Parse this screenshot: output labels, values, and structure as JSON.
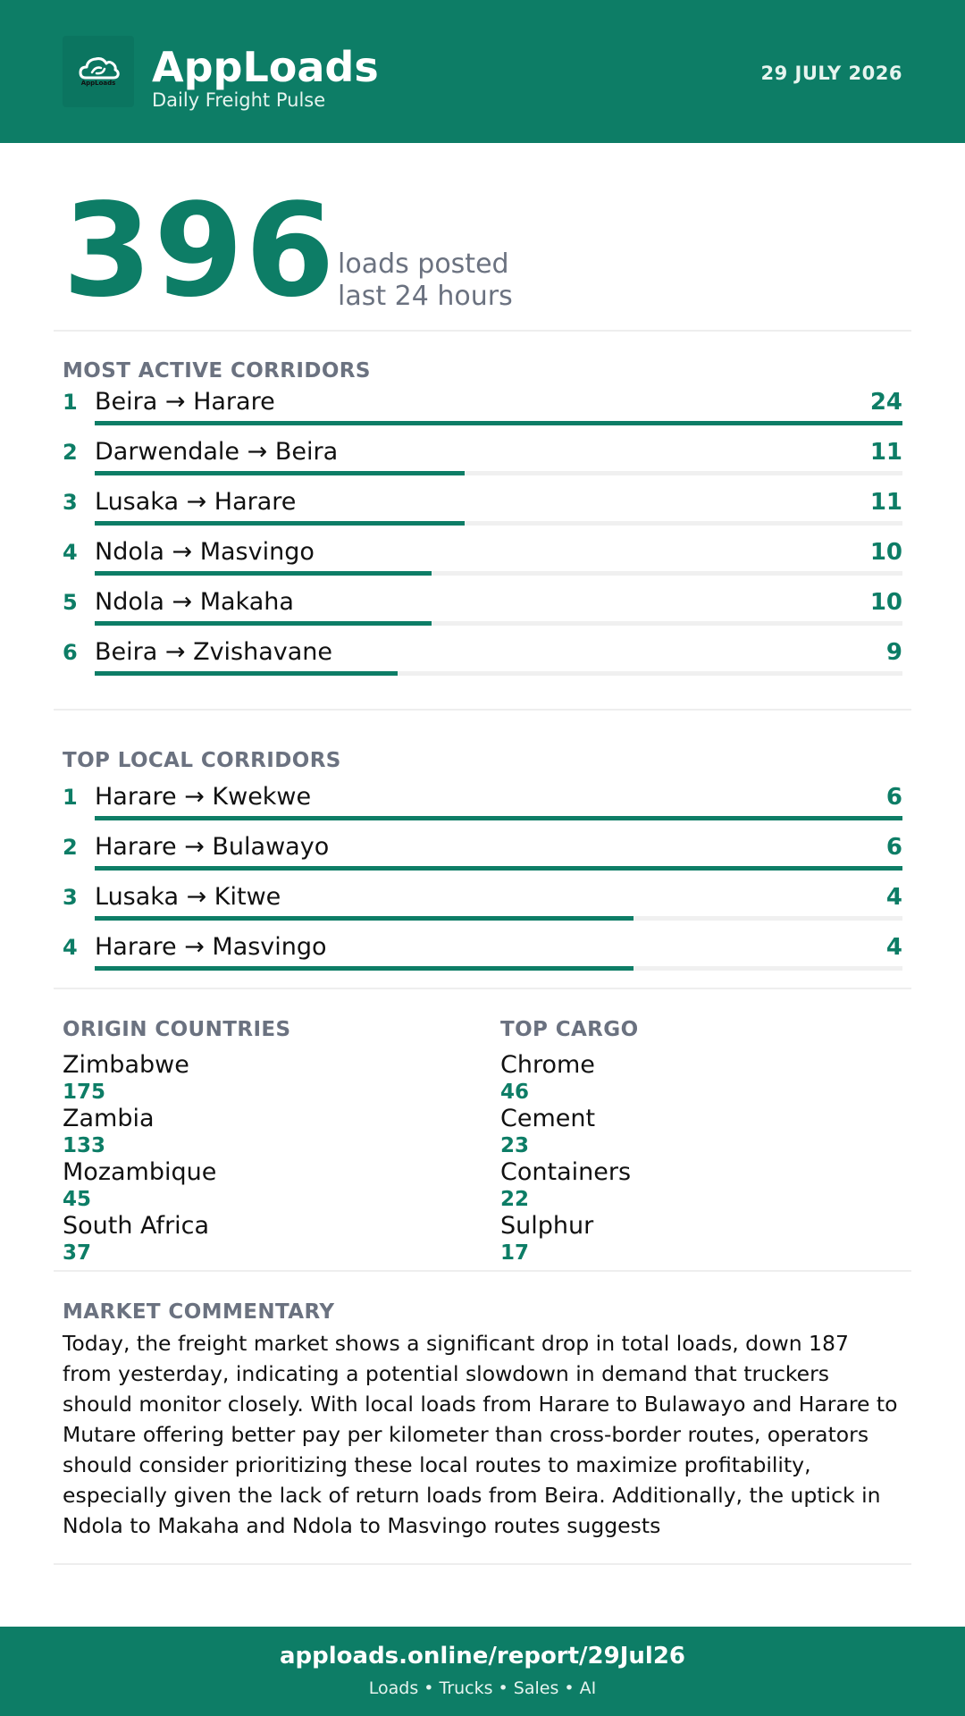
{
  "header": {
    "brand": "AppLoads",
    "tagline": "Daily Freight Pulse",
    "date": "29 JULY 2026",
    "logo_text": "AppLoads",
    "logo_icon": "cloud-icon"
  },
  "hero": {
    "count": "396",
    "label_line1": "loads posted",
    "label_line2": "last 24 hours"
  },
  "most_active": {
    "title": "MOST ACTIVE CORRIDORS",
    "max": 24,
    "items": [
      {
        "rank": "1",
        "route": "Beira → Harare",
        "count": 24
      },
      {
        "rank": "2",
        "route": "Darwendale → Beira",
        "count": 11
      },
      {
        "rank": "3",
        "route": "Lusaka → Harare",
        "count": 11
      },
      {
        "rank": "4",
        "route": "Ndola → Masvingo",
        "count": 10
      },
      {
        "rank": "5",
        "route": "Ndola → Makaha",
        "count": 10
      },
      {
        "rank": "6",
        "route": "Beira → Zvishavane",
        "count": 9
      }
    ]
  },
  "top_local": {
    "title": "TOP LOCAL CORRIDORS",
    "max": 6,
    "items": [
      {
        "rank": "1",
        "route": "Harare → Kwekwe",
        "count": 6
      },
      {
        "rank": "2",
        "route": "Harare → Bulawayo",
        "count": 6
      },
      {
        "rank": "3",
        "route": "Lusaka → Kitwe",
        "count": 4
      },
      {
        "rank": "4",
        "route": "Harare → Masvingo",
        "count": 4
      }
    ]
  },
  "origin_countries": {
    "title": "ORIGIN COUNTRIES",
    "items": [
      {
        "name": "Zimbabwe",
        "value": "175"
      },
      {
        "name": "Zambia",
        "value": "133"
      },
      {
        "name": "Mozambique",
        "value": "45"
      },
      {
        "name": "South Africa",
        "value": "37"
      }
    ]
  },
  "top_cargo": {
    "title": "TOP CARGO",
    "items": [
      {
        "name": "Chrome",
        "value": "46"
      },
      {
        "name": "Cement",
        "value": "23"
      },
      {
        "name": "Containers",
        "value": "22"
      },
      {
        "name": "Sulphur",
        "value": "17"
      }
    ]
  },
  "commentary": {
    "title": "MARKET COMMENTARY",
    "text": "Today, the freight market shows a significant drop in total loads, down 187 from yesterday, indicating a potential slowdown in demand that truckers should monitor closely. With local loads from Harare to Bulawayo and Harare to Mutare offering better pay per kilometer than cross-border routes, operators should consider prioritizing these local routes to maximize profitability, especially given the lack of return loads from Beira. Additionally, the uptick in Ndola to Makaha and Ndola to Masvingo routes suggests"
  },
  "footer": {
    "url": "apploads.online/report/29Jul26",
    "sub": "Loads • Trucks • Sales • AI"
  },
  "colors": {
    "brand": "#0d7d66",
    "muted": "#6b7280",
    "track": "#f0f0f0"
  }
}
